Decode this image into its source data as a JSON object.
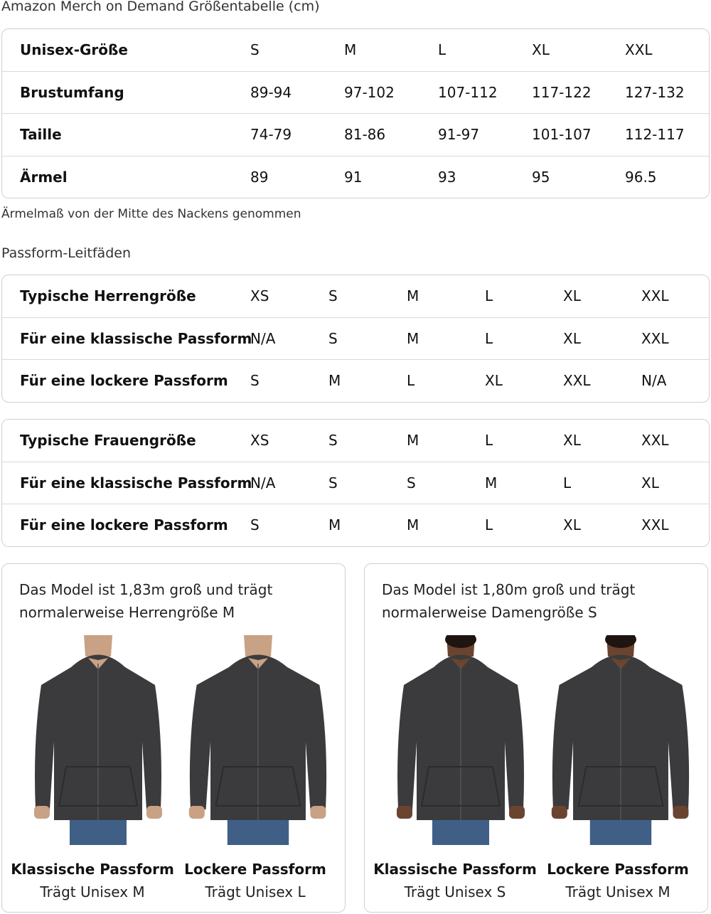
{
  "title": "Amazon Merch on Demand Größentabelle (cm)",
  "size_table": {
    "rows": [
      {
        "label": "Unisex-Größe",
        "values": [
          "S",
          "M",
          "L",
          "XL",
          "XXL"
        ]
      },
      {
        "label": "Brustumfang",
        "values": [
          "89-94",
          "97-102",
          "107-112",
          "117-122",
          "127-132"
        ]
      },
      {
        "label": "Taille",
        "values": [
          "74-79",
          "81-86",
          "91-97",
          "101-107",
          "112-117"
        ]
      },
      {
        "label": "Ärmel",
        "values": [
          "89",
          "91",
          "93",
          "95",
          "96.5"
        ]
      }
    ]
  },
  "note": "Ärmelmaß von der Mitte des Nackens genommen",
  "fit_title": "Passform-Leitfäden",
  "men_table": {
    "rows": [
      {
        "label": "Typische Herrengröße",
        "values": [
          "XS",
          "S",
          "M",
          "L",
          "XL",
          "XXL"
        ]
      },
      {
        "label": "Für eine klassische Passform",
        "values": [
          "N/A",
          "S",
          "M",
          "L",
          "XL",
          "XXL"
        ]
      },
      {
        "label": "Für eine lockere Passform",
        "values": [
          "S",
          "M",
          "L",
          "XL",
          "XXL",
          "N/A"
        ]
      }
    ]
  },
  "women_table": {
    "rows": [
      {
        "label": "Typische Frauengröße",
        "values": [
          "XS",
          "S",
          "M",
          "L",
          "XL",
          "XXL"
        ]
      },
      {
        "label": "Für eine klassische Passform",
        "values": [
          "N/A",
          "S",
          "S",
          "M",
          "L",
          "XL"
        ]
      },
      {
        "label": "Für eine lockere Passform",
        "values": [
          "S",
          "M",
          "M",
          "L",
          "XL",
          "XXL"
        ]
      }
    ]
  },
  "cards": [
    {
      "intro1": "Das Model ist 1,83m groß und trägt",
      "intro2": "normalerweise Herrengröße M",
      "figures": [
        {
          "title": "Klassische Passform",
          "sub": "Trägt Unisex M"
        },
        {
          "title": "Lockere Passform",
          "sub": "Trägt Unisex L"
        }
      ]
    },
    {
      "intro1": "Das Model ist 1,80m groß und trägt",
      "intro2": "normalerweise Damengröße S",
      "figures": [
        {
          "title": "Klassische Passform",
          "sub": "Trägt Unisex S"
        },
        {
          "title": "Lockere Passform",
          "sub": "Trägt Unisex M"
        }
      ]
    }
  ],
  "colors": {
    "hoodie": "#3b3b3d",
    "jeans": "#3f5f86",
    "skin_men": "#c9a184",
    "skin_women": "#6b4430",
    "border": "#d0d0d0"
  }
}
